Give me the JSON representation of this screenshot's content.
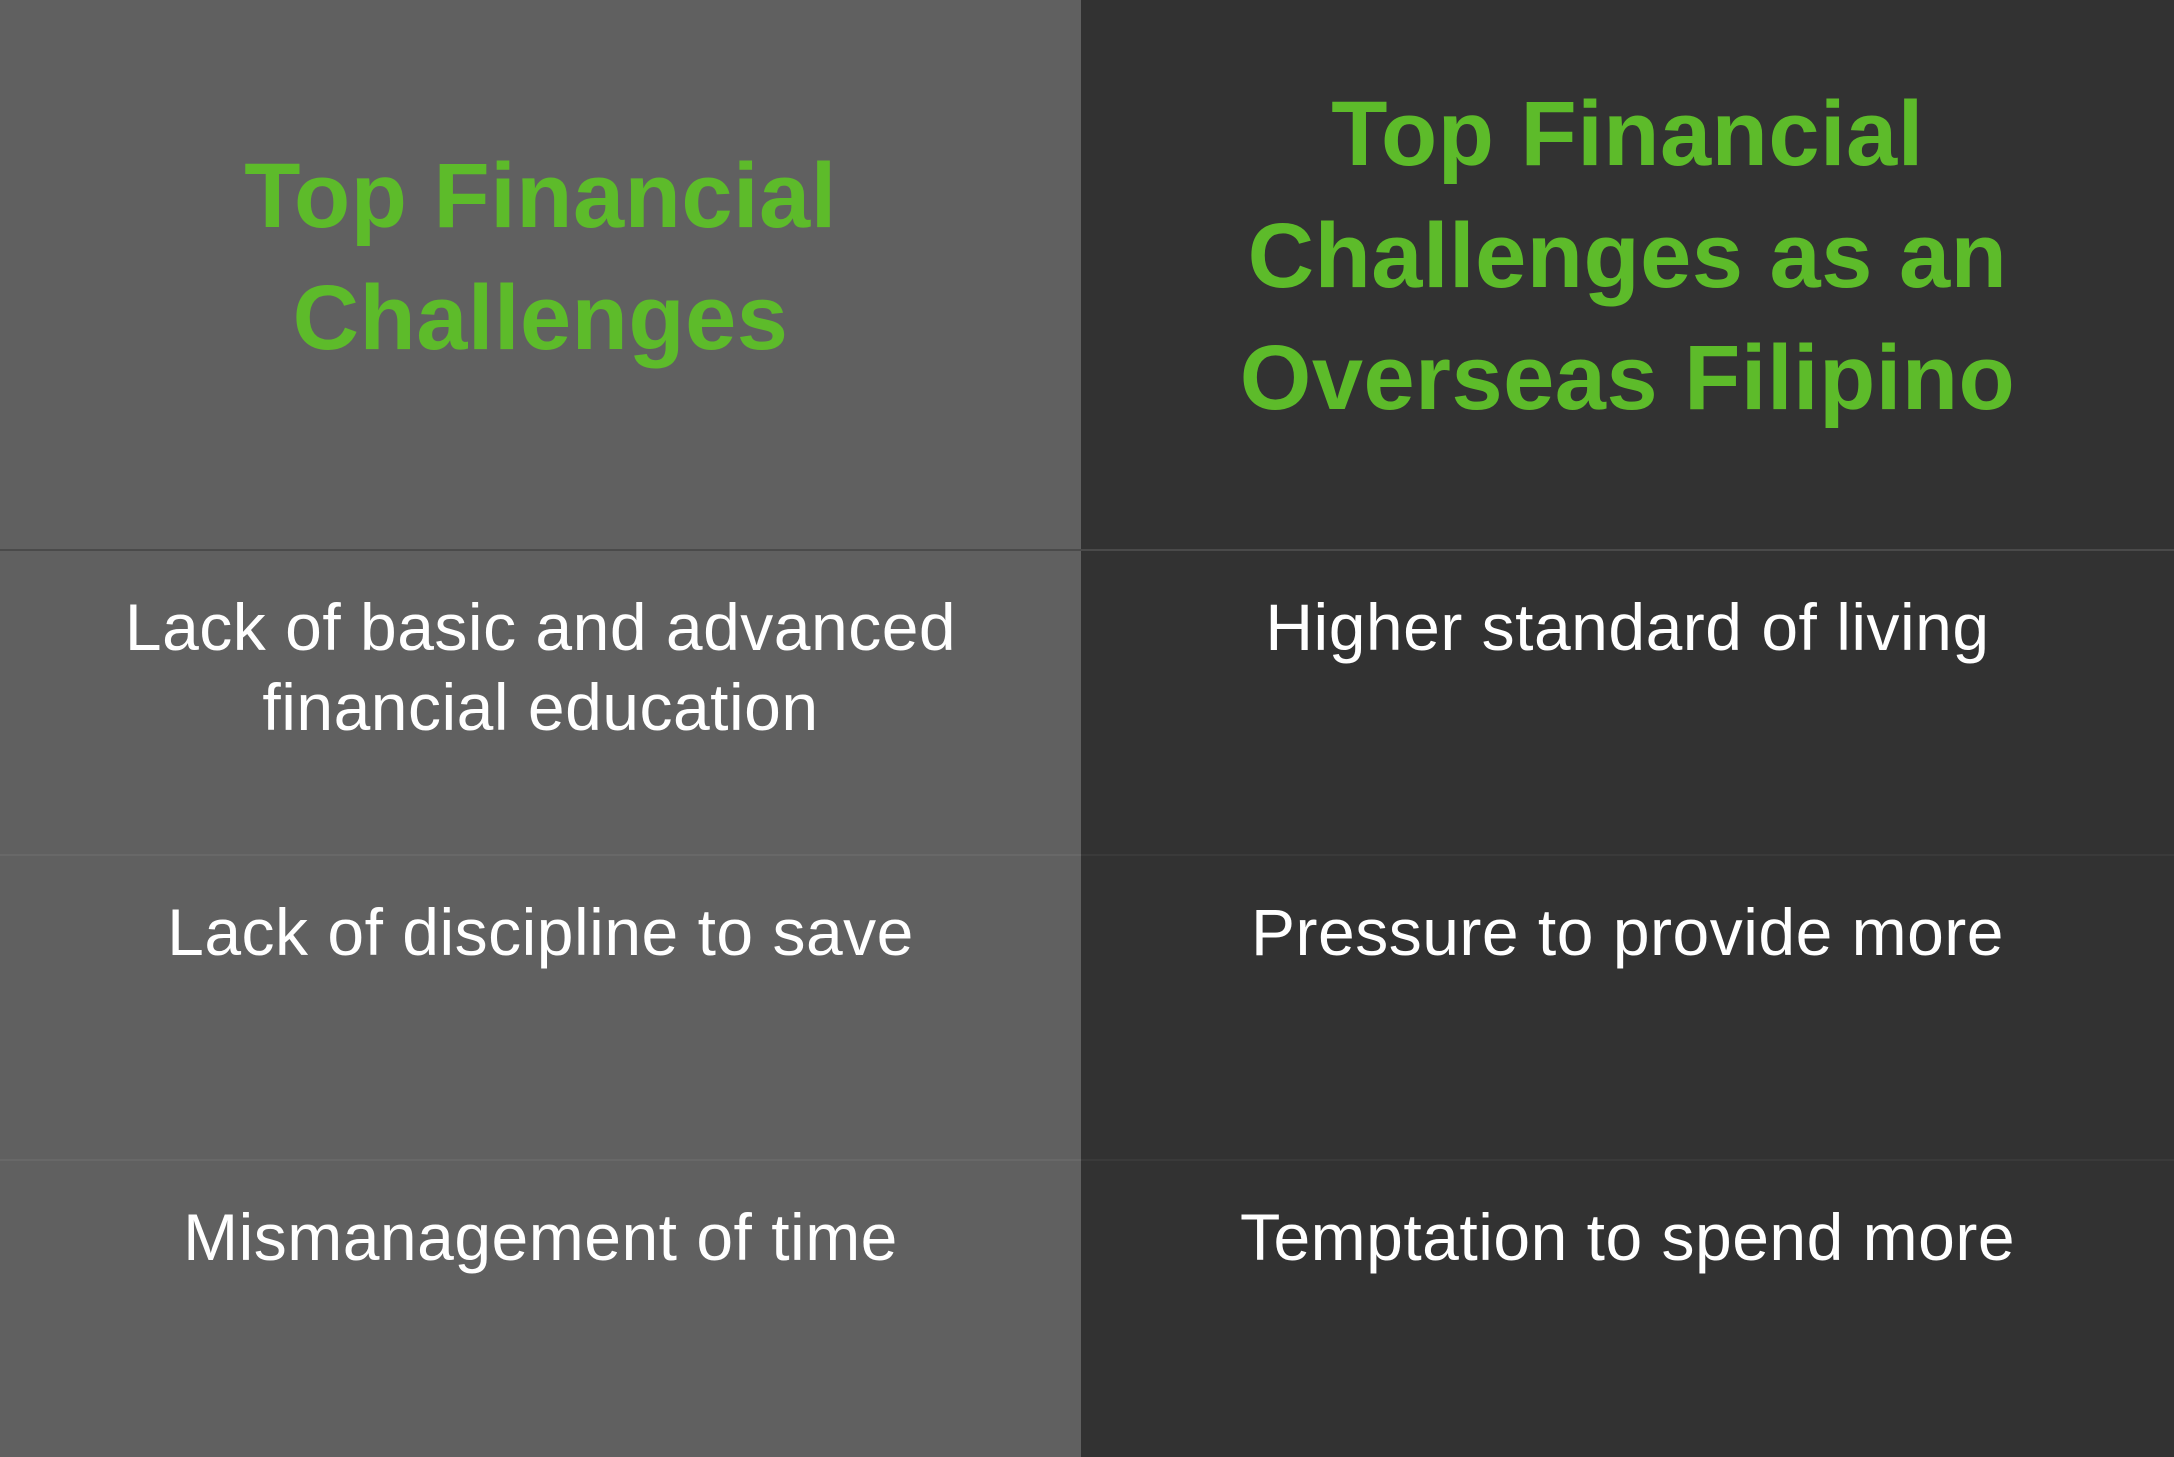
{
  "table": {
    "headers": {
      "left": "Top Financial Challenges",
      "right": "Top Financial Challenges as an Overseas Filipino"
    },
    "rows": [
      {
        "left": "Lack of basic and advanced financial education",
        "right": "Higher standard of living"
      },
      {
        "left": "Lack of discipline to save",
        "right": "Pressure to provide more"
      },
      {
        "left": "Mismanagement of time",
        "right": "Temptation to spend more"
      }
    ]
  },
  "colors": {
    "left_column_bg": "#606060",
    "right_column_bg": "#323232",
    "header_text": "#5dbb2a",
    "body_text": "#ffffff"
  }
}
